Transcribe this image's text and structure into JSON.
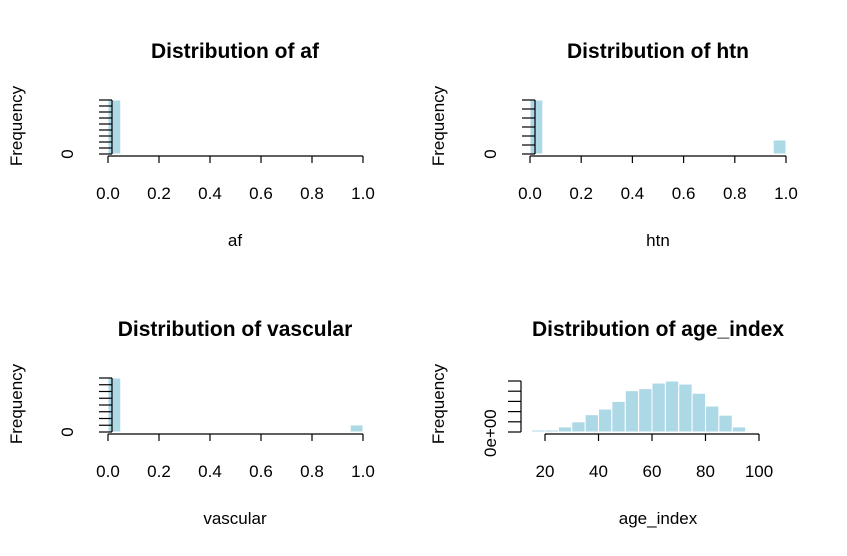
{
  "chart_data": [
    {
      "type": "bar",
      "title": "Distribution of af",
      "xlabel": "af",
      "ylabel": "Frequency",
      "xlim": [
        0,
        1
      ],
      "xticks": [
        "0.0",
        "0.2",
        "0.4",
        "0.6",
        "0.8",
        "1.0"
      ],
      "yticks": [
        "0"
      ],
      "y_minor_ticks": 9,
      "bins": [
        [
          0,
          0.05
        ],
        [
          0.95,
          1.0
        ]
      ],
      "values": [
        1,
        0
      ]
    },
    {
      "type": "bar",
      "title": "Distribution of htn",
      "xlabel": "htn",
      "ylabel": "Frequency",
      "xlim": [
        0,
        1
      ],
      "xticks": [
        "0.0",
        "0.2",
        "0.4",
        "0.6",
        "0.8",
        "1.0"
      ],
      "yticks": [
        "0"
      ],
      "y_minor_ticks": 6,
      "bins": [
        [
          0,
          0.05
        ],
        [
          0.95,
          1.0
        ]
      ],
      "values": [
        1,
        0.26
      ]
    },
    {
      "type": "bar",
      "title": "Distribution of vascular",
      "xlabel": "vascular",
      "ylabel": "Frequency",
      "xlim": [
        0,
        1
      ],
      "xticks": [
        "0.0",
        "0.2",
        "0.4",
        "0.6",
        "0.8",
        "1.0"
      ],
      "yticks": [
        "0"
      ],
      "y_minor_ticks": 8,
      "bins": [
        [
          0,
          0.05
        ],
        [
          0.95,
          1.0
        ]
      ],
      "values": [
        1,
        0.13
      ]
    },
    {
      "type": "bar",
      "title": "Distribution of age_index",
      "xlabel": "age_index",
      "ylabel": "Frequency",
      "xlim": [
        20,
        100
      ],
      "xticks": [
        "20",
        "40",
        "60",
        "80",
        "100"
      ],
      "yticks": [
        "0e+00"
      ],
      "y_minor_ticks": 5,
      "bins": [
        [
          15,
          20
        ],
        [
          20,
          25
        ],
        [
          25,
          30
        ],
        [
          30,
          35
        ],
        [
          35,
          40
        ],
        [
          40,
          45
        ],
        [
          45,
          50
        ],
        [
          50,
          55
        ],
        [
          55,
          60
        ],
        [
          60,
          65
        ],
        [
          65,
          70
        ],
        [
          70,
          75
        ],
        [
          75,
          80
        ],
        [
          80,
          85
        ],
        [
          85,
          90
        ],
        [
          90,
          95
        ]
      ],
      "values": [
        0.04,
        0.04,
        0.1,
        0.2,
        0.34,
        0.45,
        0.6,
        0.81,
        0.85,
        0.96,
        1.0,
        0.94,
        0.76,
        0.51,
        0.33,
        0.1
      ]
    }
  ]
}
